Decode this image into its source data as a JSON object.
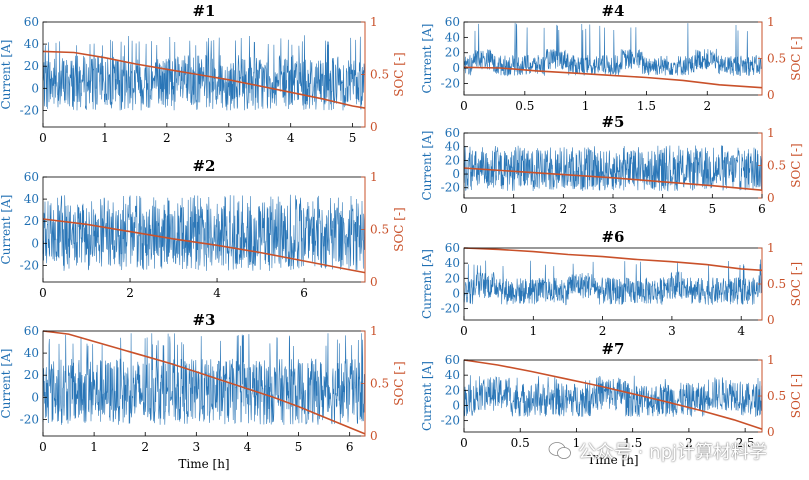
{
  "colors": {
    "current": "#1f6fb3",
    "current_light": "#8fb8dc",
    "soc": "#c9512a",
    "axis": "#000000"
  },
  "watermark": {
    "text": "公众号 · npj计算材料学",
    "icon": "wechat-logo-icon"
  },
  "chart_data": [
    {
      "type": "line",
      "title": "#1",
      "xlabel": "",
      "ylabel_left": "Current [A]",
      "ylabel_right": "SOC [-]",
      "xlim": [
        0,
        5.2
      ],
      "ylim_left": [
        -35,
        60
      ],
      "ylim_right": [
        0,
        1
      ],
      "xticks": [
        0,
        1,
        2,
        3,
        4,
        5
      ],
      "yticks_left": [
        -20,
        0,
        20,
        40,
        60
      ],
      "yticks_right": [
        0,
        0.5,
        1
      ],
      "yticklabels_right": [
        "0",
        "0.5",
        "1"
      ],
      "series": [
        {
          "axis": "left",
          "x": [
            0,
            5.2
          ],
          "band": [
            -20,
            30
          ],
          "spikes": 40,
          "spike_max": 48,
          "bursty": false
        },
        {
          "axis": "right",
          "x": [
            0,
            0.5,
            1,
            1.5,
            2,
            2.5,
            3,
            3.5,
            4,
            4.5,
            5,
            5.2
          ],
          "y": [
            0.72,
            0.71,
            0.66,
            0.6,
            0.55,
            0.5,
            0.45,
            0.39,
            0.33,
            0.27,
            0.2,
            0.18
          ]
        }
      ]
    },
    {
      "type": "line",
      "title": "#2",
      "xlabel": "",
      "ylabel_left": "Current [A]",
      "ylabel_right": "SOC [-]",
      "xlim": [
        0,
        7.4
      ],
      "ylim_left": [
        -35,
        60
      ],
      "ylim_right": [
        0,
        1
      ],
      "xticks": [
        0,
        2,
        4,
        6
      ],
      "yticks_left": [
        -20,
        0,
        20,
        40,
        60
      ],
      "yticks_right": [
        0,
        0.5,
        1
      ],
      "yticklabels_right": [
        "0",
        "0.5",
        "1"
      ],
      "series": [
        {
          "axis": "left",
          "x": [
            0,
            7.4
          ],
          "band": [
            -25,
            35
          ],
          "spikes": 60,
          "spike_max": 44,
          "bursty": false
        },
        {
          "axis": "right",
          "x": [
            0,
            1,
            2,
            3,
            4,
            5,
            6,
            7,
            7.4
          ],
          "y": [
            0.6,
            0.55,
            0.48,
            0.41,
            0.35,
            0.28,
            0.2,
            0.12,
            0.09
          ]
        }
      ]
    },
    {
      "type": "line",
      "title": "#3",
      "xlabel": "Time [h]",
      "ylabel_left": "Current [A]",
      "ylabel_right": "SOC [-]",
      "xlim": [
        0,
        6.3
      ],
      "ylim_left": [
        -35,
        60
      ],
      "ylim_right": [
        0,
        1
      ],
      "xticks": [
        0,
        1,
        2,
        3,
        4,
        5,
        6
      ],
      "yticks_left": [
        -20,
        0,
        20,
        40,
        60
      ],
      "yticks_right": [
        0,
        0.5,
        1
      ],
      "yticklabels_right": [
        "0",
        "0.5",
        "1"
      ],
      "series": [
        {
          "axis": "left",
          "x": [
            0,
            6.3
          ],
          "band": [
            -25,
            35
          ],
          "spikes": 45,
          "spike_max": 58,
          "bursty": false
        },
        {
          "axis": "right",
          "x": [
            0,
            0.5,
            1,
            1.5,
            2,
            2.5,
            3,
            3.5,
            4,
            4.5,
            5,
            5.5,
            6,
            6.3
          ],
          "y": [
            1,
            0.97,
            0.9,
            0.83,
            0.76,
            0.69,
            0.61,
            0.53,
            0.45,
            0.37,
            0.28,
            0.18,
            0.08,
            0.02
          ]
        }
      ]
    },
    {
      "type": "line",
      "title": "#4",
      "xlabel": "",
      "ylabel_left": "Current [A]",
      "ylabel_right": "SOC [-]",
      "xlim": [
        0,
        2.45
      ],
      "ylim_left": [
        -35,
        60
      ],
      "ylim_right": [
        0,
        1
      ],
      "xticks": [
        0,
        0.5,
        1,
        1.5,
        2
      ],
      "xticklabels": [
        "0",
        "0.5",
        "1",
        "1.5",
        "2"
      ],
      "yticks_left": [
        -20,
        0,
        20,
        40,
        60
      ],
      "yticks_right": [
        0,
        0.5,
        1
      ],
      "yticklabels_right": [
        "0",
        "0.5",
        "1"
      ],
      "series": [
        {
          "axis": "left",
          "x": [
            0,
            2.45
          ],
          "band": [
            -10,
            20
          ],
          "spikes": 28,
          "spike_max": 60,
          "bursty": true
        },
        {
          "axis": "right",
          "x": [
            0,
            0.3,
            0.6,
            0.9,
            1.2,
            1.5,
            1.8,
            2.1,
            2.45
          ],
          "y": [
            0.38,
            0.37,
            0.33,
            0.3,
            0.27,
            0.24,
            0.2,
            0.14,
            0.1
          ]
        }
      ]
    },
    {
      "type": "line",
      "title": "#5",
      "xlabel": "",
      "ylabel_left": "Current [A]",
      "ylabel_right": "SOC [-]",
      "xlim": [
        0,
        6
      ],
      "ylim_left": [
        -35,
        60
      ],
      "ylim_right": [
        0,
        1
      ],
      "xticks": [
        0,
        1,
        2,
        3,
        4,
        5,
        6
      ],
      "yticks_left": [
        -20,
        0,
        20,
        40,
        60
      ],
      "yticks_right": [
        0,
        0.5,
        1
      ],
      "yticklabels_right": [
        "0",
        "0.5",
        "1"
      ],
      "series": [
        {
          "axis": "left",
          "x": [
            0,
            6
          ],
          "band": [
            -25,
            35
          ],
          "spikes": 70,
          "spike_max": 42,
          "bursty": false
        },
        {
          "axis": "right",
          "x": [
            0,
            1,
            2,
            3,
            4,
            5,
            6
          ],
          "y": [
            0.46,
            0.41,
            0.36,
            0.31,
            0.25,
            0.19,
            0.12
          ]
        }
      ]
    },
    {
      "type": "line",
      "title": "#6",
      "xlabel": "",
      "ylabel_left": "Current [A]",
      "ylabel_right": "SOC [-]",
      "xlim": [
        0,
        4.3
      ],
      "ylim_left": [
        -35,
        60
      ],
      "ylim_right": [
        0,
        1
      ],
      "xticks": [
        0,
        1,
        2,
        3,
        4
      ],
      "yticks_left": [
        -20,
        0,
        20,
        40,
        60
      ],
      "yticks_right": [
        0,
        0.5,
        1
      ],
      "yticklabels_right": [
        "0",
        "0.5",
        "1"
      ],
      "series": [
        {
          "axis": "left",
          "x": [
            0,
            4.3
          ],
          "band": [
            -15,
            25
          ],
          "spikes": 22,
          "spike_max": 45,
          "bursty": true
        },
        {
          "axis": "right",
          "x": [
            0,
            0.5,
            1,
            1.5,
            2,
            2.5,
            3,
            3.5,
            4,
            4.3
          ],
          "y": [
            1,
            0.98,
            0.95,
            0.91,
            0.88,
            0.84,
            0.81,
            0.77,
            0.71,
            0.69
          ]
        }
      ]
    },
    {
      "type": "line",
      "title": "#7",
      "xlabel": "Time [h]",
      "ylabel_left": "Current [A]",
      "ylabel_right": "SOC [-]",
      "xlim": [
        0,
        2.65
      ],
      "ylim_left": [
        -35,
        60
      ],
      "ylim_right": [
        0,
        1
      ],
      "xticks": [
        0,
        0.5,
        1,
        1.5,
        2,
        2.5
      ],
      "xticklabels": [
        "0",
        "0.5",
        "1",
        "1.5",
        "2",
        "2.5"
      ],
      "yticks_left": [
        -20,
        0,
        20,
        40,
        60
      ],
      "yticks_right": [
        0,
        0.5,
        1
      ],
      "yticklabels_right": [
        "0",
        "0.5",
        "1"
      ],
      "series": [
        {
          "axis": "left",
          "x": [
            0,
            2.65
          ],
          "band": [
            -15,
            35
          ],
          "spikes": 18,
          "spike_max": 40,
          "bursty": true
        },
        {
          "axis": "right",
          "x": [
            0,
            0.3,
            0.6,
            0.9,
            1.2,
            1.5,
            1.8,
            2.1,
            2.4,
            2.65
          ],
          "y": [
            1,
            0.93,
            0.84,
            0.74,
            0.64,
            0.53,
            0.42,
            0.3,
            0.17,
            0.04
          ]
        }
      ]
    }
  ]
}
